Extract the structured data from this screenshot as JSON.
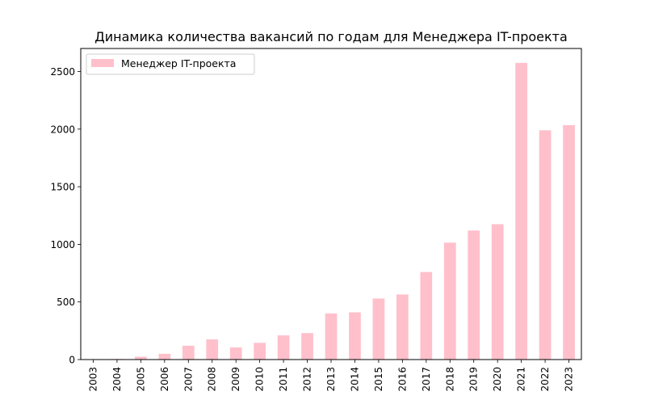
{
  "chart_data": {
    "type": "bar",
    "title": "Динамика количества вакансий по годам для Менеджера IT-проекта",
    "xlabel": "",
    "ylabel": "",
    "categories": [
      "2003",
      "2004",
      "2005",
      "2006",
      "2007",
      "2008",
      "2009",
      "2010",
      "2011",
      "2012",
      "2013",
      "2014",
      "2015",
      "2016",
      "2017",
      "2018",
      "2019",
      "2020",
      "2021",
      "2022",
      "2023"
    ],
    "series": [
      {
        "name": "Менеджер IT-проекта",
        "color": "#ffc0cb",
        "values": [
          1,
          5,
          25,
          50,
          120,
          175,
          105,
          145,
          210,
          230,
          400,
          410,
          530,
          565,
          760,
          1015,
          1120,
          1175,
          2575,
          1990,
          2035
        ]
      }
    ],
    "ylim": [
      0,
      2700
    ],
    "yticks": [
      0,
      500,
      1000,
      1500,
      2000,
      2500
    ],
    "grid": false,
    "legend": "top-left",
    "x_tick_rotation": "vertical"
  }
}
